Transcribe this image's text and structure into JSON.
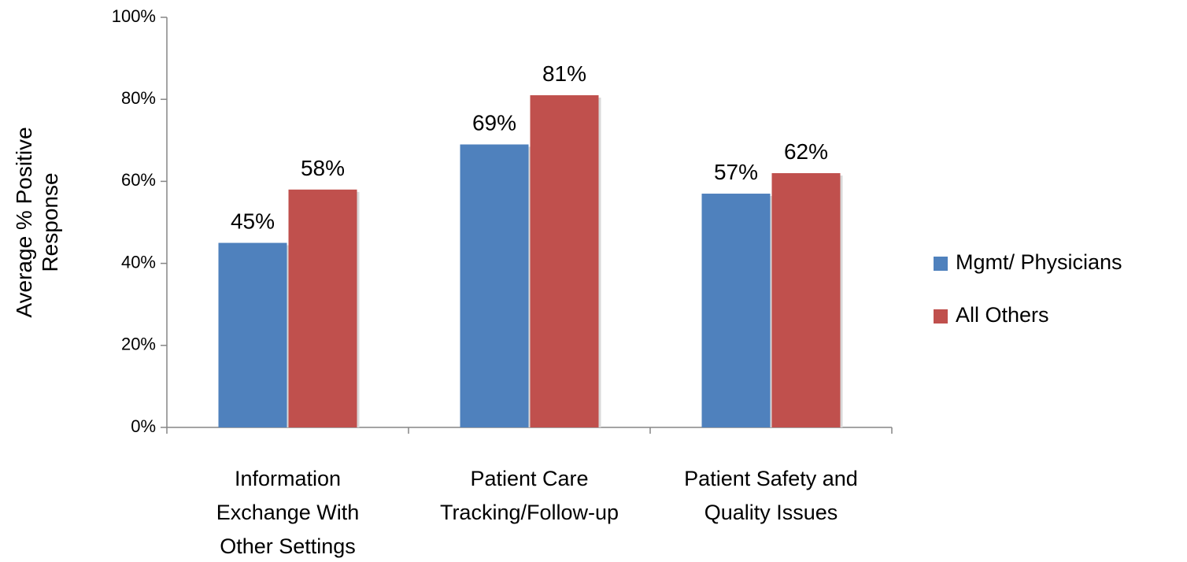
{
  "chart_data": {
    "type": "bar",
    "y_label": [
      "Average % Positive",
      "Response"
    ],
    "categories": [
      [
        "Information",
        "Exchange With",
        "Other Settings"
      ],
      [
        "Patient Care",
        "Tracking/Follow-up"
      ],
      [
        "Patient Safety and",
        "Quality Issues"
      ]
    ],
    "series": [
      {
        "name": "Mgmt/ Physicians",
        "color": "#4f81bd",
        "values": [
          45,
          69,
          57
        ],
        "value_labels": [
          "45%",
          "69%",
          "57%"
        ]
      },
      {
        "name": "All Others",
        "color": "#c0504d",
        "values": [
          58,
          81,
          62
        ],
        "value_labels": [
          "58%",
          "81%",
          "62%"
        ]
      }
    ],
    "ylim": [
      0,
      100
    ],
    "yticks": [
      {
        "value": 0,
        "label": "0%"
      },
      {
        "value": 20,
        "label": "20%"
      },
      {
        "value": 40,
        "label": "40%"
      },
      {
        "value": 60,
        "label": "60%"
      },
      {
        "value": 80,
        "label": "80%"
      },
      {
        "value": 100,
        "label": "100%"
      }
    ],
    "legend": "right"
  }
}
